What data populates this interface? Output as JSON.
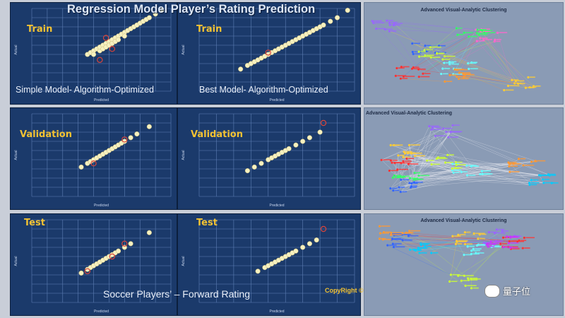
{
  "title": "Regression Model Player’s Rating Prediction",
  "captions": {
    "simple_model": "Simple Model- Algorithm-Optimized",
    "best_model": "Best Model- Algorithm-Optimized",
    "bottom": "Soccer Players’ – Forward Rating",
    "copyright": "CopyRight ©"
  },
  "phases": [
    "Train",
    "Validation",
    "Test"
  ],
  "clustering": {
    "title": "Advanced Visual-Analytic Clustering"
  },
  "watermark": "量子位",
  "colors": {
    "panel_bg": "#1b3a6b",
    "grid": "#5f7fb5",
    "point_fill": "#f7f1c0",
    "outlier": "#d9443a",
    "phase_label": "#f2c233"
  },
  "chart_data": [
    {
      "type": "scatter",
      "phase": "Train",
      "model": "Simple",
      "xlabel": "Predicted",
      "ylabel": "Actual",
      "xlim": [
        50,
        95
      ],
      "ylim": [
        50,
        95
      ],
      "series": [
        {
          "values": [
            [
              68,
              70
            ],
            [
              69,
              71
            ],
            [
              70,
              72
            ],
            [
              70,
              70
            ],
            [
              71,
              73
            ],
            [
              72,
              72
            ],
            [
              72,
              74
            ],
            [
              73,
              75
            ],
            [
              73,
              73
            ],
            [
              74,
              76
            ],
            [
              74,
              74
            ],
            [
              75,
              77
            ],
            [
              75,
              75
            ],
            [
              76,
              78
            ],
            [
              76,
              76
            ],
            [
              77,
              79
            ],
            [
              77,
              77
            ],
            [
              78,
              80
            ],
            [
              78,
              78
            ],
            [
              79,
              81
            ],
            [
              80,
              82
            ],
            [
              80,
              80
            ],
            [
              81,
              83
            ],
            [
              82,
              84
            ],
            [
              83,
              85
            ],
            [
              84,
              86
            ],
            [
              85,
              87
            ],
            [
              86,
              88
            ],
            [
              87,
              89
            ],
            [
              88,
              90
            ],
            [
              90,
              92
            ],
            [
              92,
              94
            ]
          ]
        },
        {
          "values": [
            [
              72,
              67
            ],
            [
              76,
              73
            ],
            [
              74,
              79
            ]
          ]
        }
      ]
    },
    {
      "type": "scatter",
      "phase": "Train",
      "model": "Best",
      "xlabel": "Predicted",
      "ylabel": "Actual",
      "xlim": [
        50,
        95
      ],
      "ylim": [
        50,
        95
      ],
      "series": [
        {
          "values": [
            [
              62,
              62
            ],
            [
              64,
              64
            ],
            [
              65,
              65
            ],
            [
              66,
              66
            ],
            [
              67,
              67
            ],
            [
              68,
              68
            ],
            [
              69,
              69
            ],
            [
              70,
              70
            ],
            [
              71,
              71
            ],
            [
              72,
              72
            ],
            [
              73,
              73
            ],
            [
              74,
              74
            ],
            [
              75,
              75
            ],
            [
              76,
              76
            ],
            [
              77,
              77
            ],
            [
              78,
              78
            ],
            [
              79,
              79
            ],
            [
              80,
              80
            ],
            [
              81,
              81
            ],
            [
              82,
              82
            ],
            [
              83,
              83
            ],
            [
              84,
              84
            ],
            [
              85,
              85
            ],
            [
              86,
              86
            ],
            [
              88,
              88
            ],
            [
              90,
              90
            ],
            [
              93,
              94
            ]
          ]
        },
        {
          "values": [
            [
              70,
              71
            ]
          ]
        }
      ]
    },
    {
      "type": "scatter",
      "phase": "Validation",
      "model": "Simple",
      "xlabel": "Predicted",
      "ylabel": "Actual",
      "xlim": [
        50,
        95
      ],
      "ylim": [
        50,
        95
      ],
      "series": [
        {
          "values": [
            [
              66,
              66
            ],
            [
              68,
              68
            ],
            [
              69,
              69
            ],
            [
              70,
              70
            ],
            [
              71,
              71
            ],
            [
              72,
              72
            ],
            [
              73,
              73
            ],
            [
              74,
              74
            ],
            [
              75,
              75
            ],
            [
              76,
              76
            ],
            [
              77,
              77
            ],
            [
              78,
              78
            ],
            [
              79,
              79
            ],
            [
              80,
              80
            ],
            [
              82,
              82
            ],
            [
              84,
              84
            ],
            [
              88,
              88
            ]
          ]
        },
        {
          "values": [
            [
              70,
              68
            ],
            [
              80,
              81
            ]
          ]
        }
      ]
    },
    {
      "type": "scatter",
      "phase": "Validation",
      "model": "Best",
      "xlabel": "Predicted",
      "ylabel": "Actual",
      "xlim": [
        50,
        95
      ],
      "ylim": [
        50,
        95
      ],
      "series": [
        {
          "values": [
            [
              64,
              64
            ],
            [
              66,
              66
            ],
            [
              68,
              68
            ],
            [
              70,
              70
            ],
            [
              71,
              71
            ],
            [
              72,
              72
            ],
            [
              73,
              73
            ],
            [
              74,
              74
            ],
            [
              75,
              75
            ],
            [
              76,
              76
            ],
            [
              78,
              78
            ],
            [
              80,
              80
            ],
            [
              82,
              82
            ],
            [
              85,
              85
            ]
          ]
        },
        {
          "values": [
            [
              86,
              90
            ]
          ]
        }
      ]
    },
    {
      "type": "scatter",
      "phase": "Test",
      "model": "Simple",
      "xlabel": "Predicted",
      "ylabel": "Actual",
      "xlim": [
        50,
        95
      ],
      "ylim": [
        50,
        95
      ],
      "series": [
        {
          "values": [
            [
              66,
              66
            ],
            [
              68,
              68
            ],
            [
              69,
              69
            ],
            [
              70,
              70
            ],
            [
              71,
              71
            ],
            [
              72,
              72
            ],
            [
              73,
              73
            ],
            [
              74,
              74
            ],
            [
              75,
              75
            ],
            [
              76,
              76
            ],
            [
              77,
              77
            ],
            [
              78,
              78
            ],
            [
              80,
              80
            ],
            [
              82,
              82
            ],
            [
              88,
              88
            ]
          ]
        },
        {
          "values": [
            [
              68,
              67
            ],
            [
              76,
              75
            ],
            [
              80,
              82
            ]
          ]
        }
      ]
    },
    {
      "type": "scatter",
      "phase": "Test",
      "model": "Best",
      "xlabel": "Predicted",
      "ylabel": "Actual",
      "xlim": [
        50,
        95
      ],
      "ylim": [
        50,
        95
      ],
      "series": [
        {
          "values": [
            [
              67,
              67
            ],
            [
              69,
              69
            ],
            [
              70,
              70
            ],
            [
              71,
              71
            ],
            [
              72,
              72
            ],
            [
              73,
              73
            ],
            [
              74,
              74
            ],
            [
              75,
              75
            ],
            [
              76,
              76
            ],
            [
              77,
              77
            ],
            [
              78,
              78
            ],
            [
              80,
              80
            ],
            [
              82,
              82
            ],
            [
              84,
              84
            ]
          ]
        },
        {
          "values": [
            [
              86,
              90
            ]
          ]
        }
      ]
    }
  ]
}
